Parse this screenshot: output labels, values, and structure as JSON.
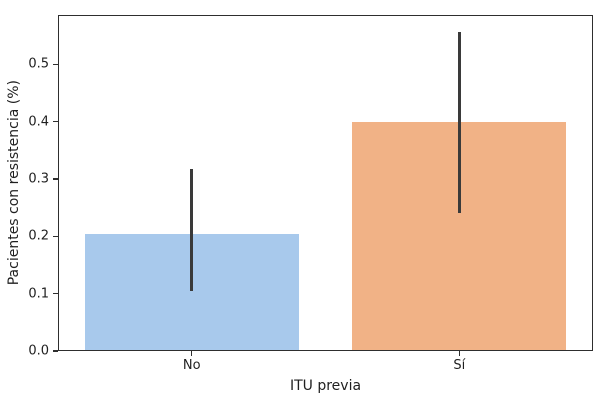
{
  "figure": {
    "background": "#ffffff"
  },
  "chart_data": {
    "type": "bar",
    "title": "",
    "xlabel": "ITU previa",
    "ylabel": "Pacientes con resistencia (%)",
    "categories": [
      "No",
      "Sí"
    ],
    "values": [
      0.204,
      0.4
    ],
    "error_bars": [
      {
        "low": 0.105,
        "high": 0.318
      },
      {
        "low": 0.24,
        "high": 0.556
      }
    ],
    "bar_colors": [
      "#a8c9ec",
      "#f1b286"
    ],
    "error_color": "#3a3a3a",
    "axis_color": "#2e2e2e",
    "text_color": "#1f1f1f",
    "ylim": [
      0,
      0.586
    ],
    "yticks": [
      0.0,
      0.1,
      0.2,
      0.3,
      0.4,
      0.5
    ],
    "ytick_labels": [
      "0.0",
      "0.1",
      "0.2",
      "0.3",
      "0.4",
      "0.5"
    ],
    "bar_width_fraction": 0.8,
    "grid": false,
    "legend": null
  }
}
